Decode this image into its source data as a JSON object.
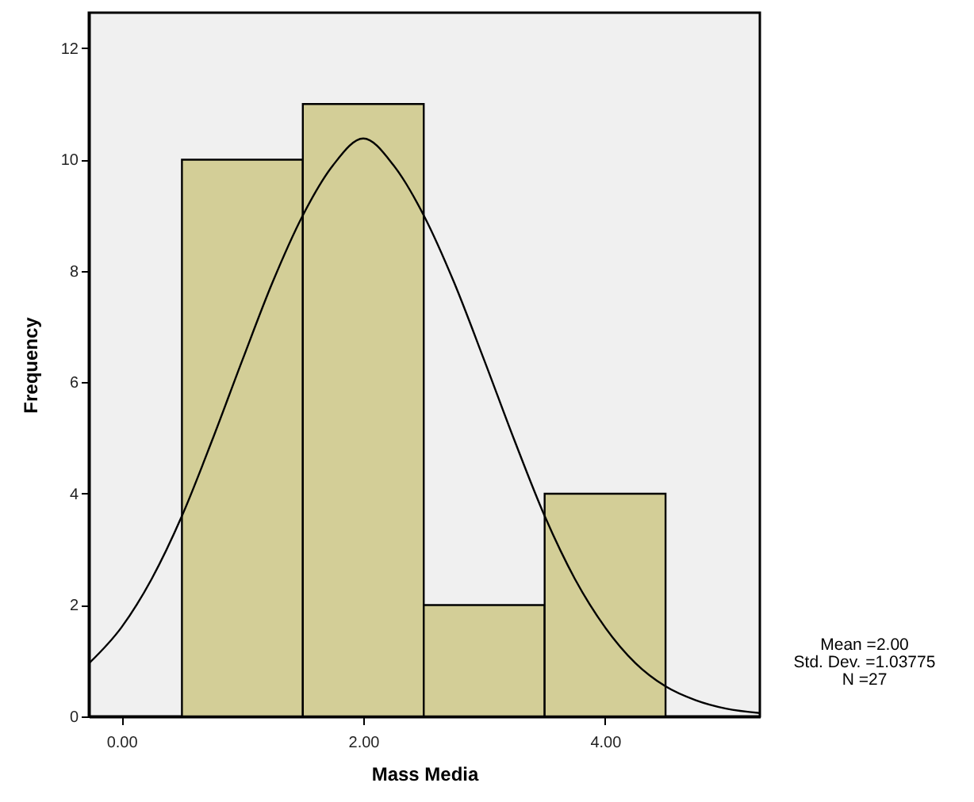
{
  "chart_data": {
    "type": "histogram",
    "xlabel": "Mass Media",
    "ylabel": "Frequency",
    "bins": [
      0.5,
      1.5,
      2.5,
      3.5,
      4.5
    ],
    "series": [
      {
        "color": "#d3ce97",
        "values": [
          10,
          11,
          2,
          4
        ]
      },
      {
        "type": "line",
        "color": "#000000",
        "x": [
          -0.27,
          0,
          0.25,
          0.5,
          0.75,
          1.0,
          1.25,
          1.5,
          1.75,
          2.0,
          2.25,
          2.5,
          2.75,
          3.0,
          3.25,
          3.5,
          3.75,
          4.0,
          4.25,
          4.5,
          4.75,
          5.0,
          5.28
        ],
        "values": [
          0.95,
          1.6,
          2.47,
          3.6,
          4.96,
          6.4,
          7.8,
          9.0,
          9.9,
          10.38,
          9.9,
          9.0,
          7.8,
          6.4,
          4.96,
          3.6,
          2.47,
          1.6,
          0.96,
          0.54,
          0.29,
          0.14,
          0.06
        ]
      }
    ],
    "xlim": [
      -0.27,
      5.28
    ],
    "xticks": [
      {
        "value": 0,
        "label": "0.00"
      },
      {
        "value": 2,
        "label": "2.00"
      },
      {
        "value": 4,
        "label": "4.00"
      }
    ],
    "ylim": [
      0,
      12.64
    ],
    "yticks": [
      0,
      2,
      4,
      6,
      8,
      10,
      12
    ],
    "grid": false,
    "annotations": [
      "Mean =2.00",
      "Std. Dev. =1.03775",
      "N =27"
    ]
  }
}
